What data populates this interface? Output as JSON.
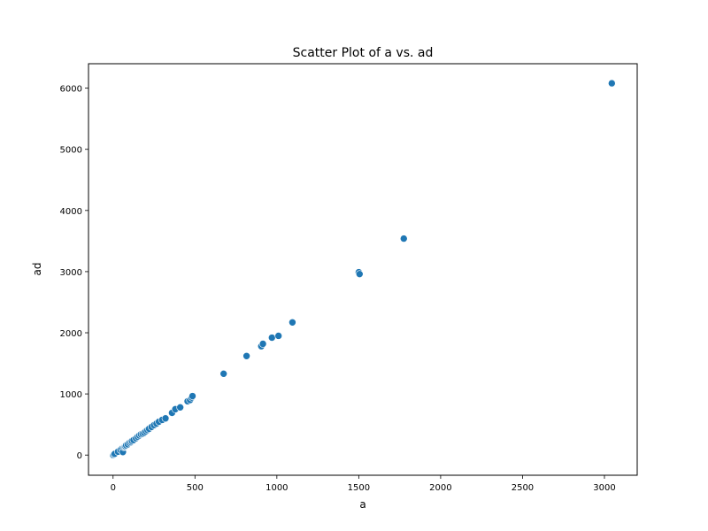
{
  "chart_data": {
    "type": "scatter",
    "title": "Scatter Plot of a vs. ad",
    "xlabel": "a",
    "ylabel": "ad",
    "xlim": [
      -150,
      3200
    ],
    "ylim": [
      -330,
      6400
    ],
    "xticks": [
      0,
      500,
      1000,
      1500,
      2000,
      2500,
      3000
    ],
    "yticks": [
      0,
      1000,
      2000,
      3000,
      4000,
      5000,
      6000
    ],
    "grid": false,
    "marker_color": "#1f77b4",
    "points": [
      {
        "x": 0,
        "y": 0
      },
      {
        "x": 5,
        "y": 10
      },
      {
        "x": 10,
        "y": 20
      },
      {
        "x": 30,
        "y": 55
      },
      {
        "x": 45,
        "y": 85
      },
      {
        "x": 55,
        "y": 110
      },
      {
        "x": 60,
        "y": 50
      },
      {
        "x": 65,
        "y": 130
      },
      {
        "x": 70,
        "y": 140
      },
      {
        "x": 75,
        "y": 145
      },
      {
        "x": 80,
        "y": 160
      },
      {
        "x": 90,
        "y": 175
      },
      {
        "x": 100,
        "y": 200
      },
      {
        "x": 110,
        "y": 210
      },
      {
        "x": 115,
        "y": 230
      },
      {
        "x": 125,
        "y": 245
      },
      {
        "x": 140,
        "y": 275
      },
      {
        "x": 150,
        "y": 300
      },
      {
        "x": 160,
        "y": 320
      },
      {
        "x": 170,
        "y": 340
      },
      {
        "x": 180,
        "y": 350
      },
      {
        "x": 190,
        "y": 365
      },
      {
        "x": 200,
        "y": 390
      },
      {
        "x": 210,
        "y": 410
      },
      {
        "x": 220,
        "y": 430
      },
      {
        "x": 235,
        "y": 460
      },
      {
        "x": 250,
        "y": 490
      },
      {
        "x": 265,
        "y": 515
      },
      {
        "x": 280,
        "y": 545
      },
      {
        "x": 300,
        "y": 575
      },
      {
        "x": 320,
        "y": 600
      },
      {
        "x": 360,
        "y": 690
      },
      {
        "x": 380,
        "y": 750
      },
      {
        "x": 410,
        "y": 780
      },
      {
        "x": 455,
        "y": 880
      },
      {
        "x": 470,
        "y": 900
      },
      {
        "x": 480,
        "y": 940
      },
      {
        "x": 485,
        "y": 965
      },
      {
        "x": 675,
        "y": 1330
      },
      {
        "x": 815,
        "y": 1620
      },
      {
        "x": 905,
        "y": 1780
      },
      {
        "x": 915,
        "y": 1820
      },
      {
        "x": 970,
        "y": 1920
      },
      {
        "x": 1010,
        "y": 1950
      },
      {
        "x": 1095,
        "y": 2170
      },
      {
        "x": 1500,
        "y": 2990
      },
      {
        "x": 1505,
        "y": 2960
      },
      {
        "x": 1775,
        "y": 3540
      },
      {
        "x": 3045,
        "y": 6080
      }
    ]
  }
}
